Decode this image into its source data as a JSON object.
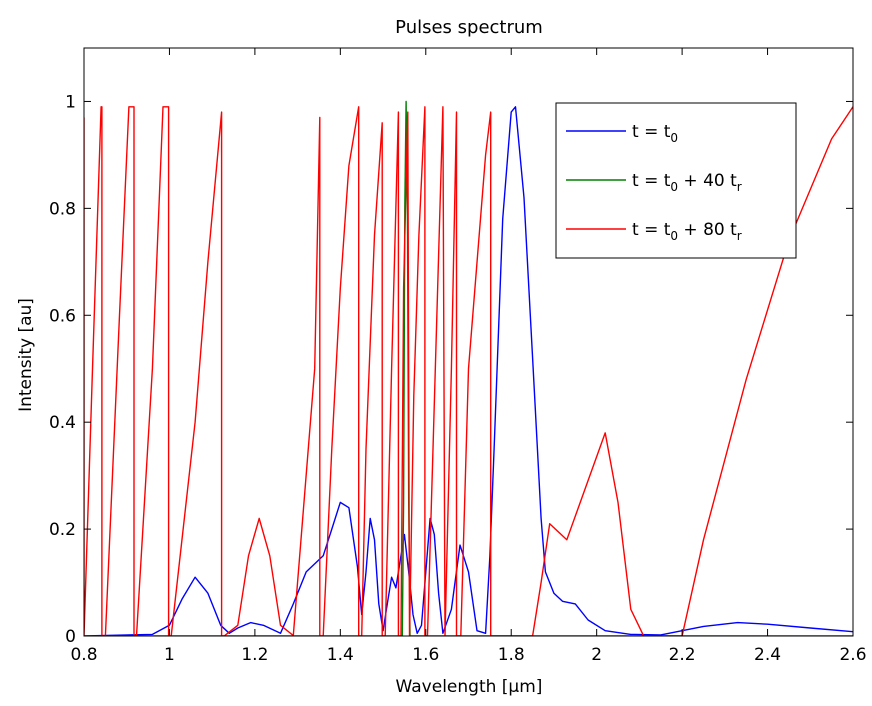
{
  "chart_data": {
    "type": "line",
    "title": "Pulses spectrum",
    "xlabel": "Wavelength [µm]",
    "ylabel": "Intensity [au]",
    "xlim": [
      0.8,
      2.6
    ],
    "ylim": [
      0,
      1.1
    ],
    "x_ticks": [
      "0.8",
      "1",
      "1.2",
      "1.4",
      "1.6",
      "1.8",
      "2",
      "2.2",
      "2.4",
      "2.6"
    ],
    "x_tick_values": [
      0.8,
      1.0,
      1.2,
      1.4,
      1.6,
      1.8,
      2.0,
      2.2,
      2.4,
      2.6
    ],
    "y_ticks": [
      "0",
      "0.2",
      "0.4",
      "0.6",
      "0.8",
      "1"
    ],
    "y_tick_values": [
      0,
      0.2,
      0.4,
      0.6,
      0.8,
      1.0
    ],
    "grid": false,
    "legend_position": "top-right",
    "series": [
      {
        "name": "t = t0",
        "legend_parts": [
          "t = t",
          "0"
        ],
        "color": "#0000ff",
        "x": [
          0.8,
          0.96,
          1.0,
          1.03,
          1.06,
          1.09,
          1.12,
          1.14,
          1.16,
          1.19,
          1.22,
          1.26,
          1.29,
          1.32,
          1.36,
          1.38,
          1.4,
          1.42,
          1.44,
          1.45,
          1.46,
          1.47,
          1.48,
          1.49,
          1.5,
          1.51,
          1.52,
          1.53,
          1.54,
          1.55,
          1.56,
          1.57,
          1.58,
          1.59,
          1.6,
          1.61,
          1.62,
          1.63,
          1.64,
          1.66,
          1.68,
          1.7,
          1.72,
          1.74,
          1.75,
          1.76,
          1.78,
          1.8,
          1.81,
          1.83,
          1.85,
          1.87,
          1.88,
          1.9,
          1.92,
          1.95,
          1.98,
          2.02,
          2.08,
          2.15,
          2.2,
          2.25,
          2.33,
          2.4,
          2.5,
          2.6
        ],
        "y": [
          0,
          0.003,
          0.02,
          0.07,
          0.11,
          0.08,
          0.02,
          0.005,
          0.015,
          0.025,
          0.02,
          0.005,
          0.06,
          0.12,
          0.15,
          0.2,
          0.25,
          0.24,
          0.13,
          0.04,
          0.12,
          0.22,
          0.18,
          0.06,
          0.01,
          0.06,
          0.11,
          0.09,
          0.14,
          0.19,
          0.12,
          0.04,
          0.005,
          0.02,
          0.12,
          0.22,
          0.19,
          0.08,
          0.005,
          0.05,
          0.17,
          0.12,
          0.01,
          0.005,
          0.15,
          0.35,
          0.78,
          0.98,
          0.99,
          0.82,
          0.52,
          0.22,
          0.12,
          0.08,
          0.065,
          0.06,
          0.03,
          0.01,
          0.003,
          0.002,
          0.01,
          0.018,
          0.025,
          0.022,
          0.015,
          0.008
        ]
      },
      {
        "name": "t = t0 + 40 tr",
        "legend_parts": [
          "t = t",
          "0",
          " + 40 t",
          "r"
        ],
        "color": "#008000",
        "x": [
          0.8,
          1.35,
          1.545,
          1.548,
          1.551,
          1.554,
          1.557,
          1.56,
          1.563,
          1.6,
          2.6
        ],
        "y": [
          0,
          0,
          0,
          0.25,
          0.8,
          1.0,
          0.8,
          0.25,
          0,
          0,
          0
        ]
      },
      {
        "name": "t = t0 + 80 tr",
        "legend_parts": [
          "t = t",
          "0",
          " + 80 t",
          "r"
        ],
        "color": "#ff0000",
        "x": [
          0.8,
          0.8,
          0.82,
          0.84,
          0.842,
          0.842,
          0.85,
          0.883,
          0.905,
          0.917,
          0.917,
          0.923,
          0.96,
          0.985,
          0.998,
          0.998,
          1.004,
          1.06,
          1.09,
          1.122,
          1.122,
          1.128,
          1.16,
          1.185,
          1.21,
          1.235,
          1.26,
          1.29,
          1.34,
          1.352,
          1.352,
          1.36,
          1.38,
          1.4,
          1.42,
          1.443,
          1.443,
          1.45,
          1.46,
          1.48,
          1.498,
          1.498,
          1.505,
          1.52,
          1.536,
          1.536,
          1.542,
          1.548,
          1.558,
          1.562,
          1.572,
          1.584,
          1.598,
          1.598,
          1.604,
          1.617,
          1.64,
          1.645,
          1.66,
          1.672,
          1.672,
          1.682,
          1.7,
          1.74,
          1.752,
          1.752,
          1.8,
          1.85,
          1.87,
          1.89,
          1.93,
          2.02,
          2.05,
          2.08,
          2.11,
          2.2,
          2.25,
          2.35,
          2.45,
          2.55,
          2.6
        ],
        "y": [
          0.97,
          0.0,
          0.5,
          0.99,
          0.99,
          0.0,
          0.0,
          0.6,
          0.99,
          0.99,
          0.0,
          0.0,
          0.5,
          0.99,
          0.99,
          0.0,
          0.0,
          0.4,
          0.7,
          0.98,
          0.0,
          0.0,
          0.02,
          0.15,
          0.22,
          0.15,
          0.02,
          0.001,
          0.5,
          0.97,
          0.0,
          0.0,
          0.35,
          0.65,
          0.88,
          0.99,
          0.0,
          0.0,
          0.35,
          0.75,
          0.96,
          0.0,
          0.0,
          0.5,
          0.98,
          0.0,
          0.0,
          0.65,
          0.98,
          0.0,
          0.45,
          0.75,
          0.99,
          0.0,
          0.0,
          0.35,
          0.99,
          0.0,
          0.5,
          0.98,
          0.0,
          0.0,
          0.5,
          0.9,
          0.98,
          0.0,
          0.0,
          0.0,
          0.1,
          0.21,
          0.18,
          0.38,
          0.25,
          0.05,
          0.0,
          0.0,
          0.18,
          0.48,
          0.74,
          0.93,
          0.99
        ]
      }
    ]
  }
}
